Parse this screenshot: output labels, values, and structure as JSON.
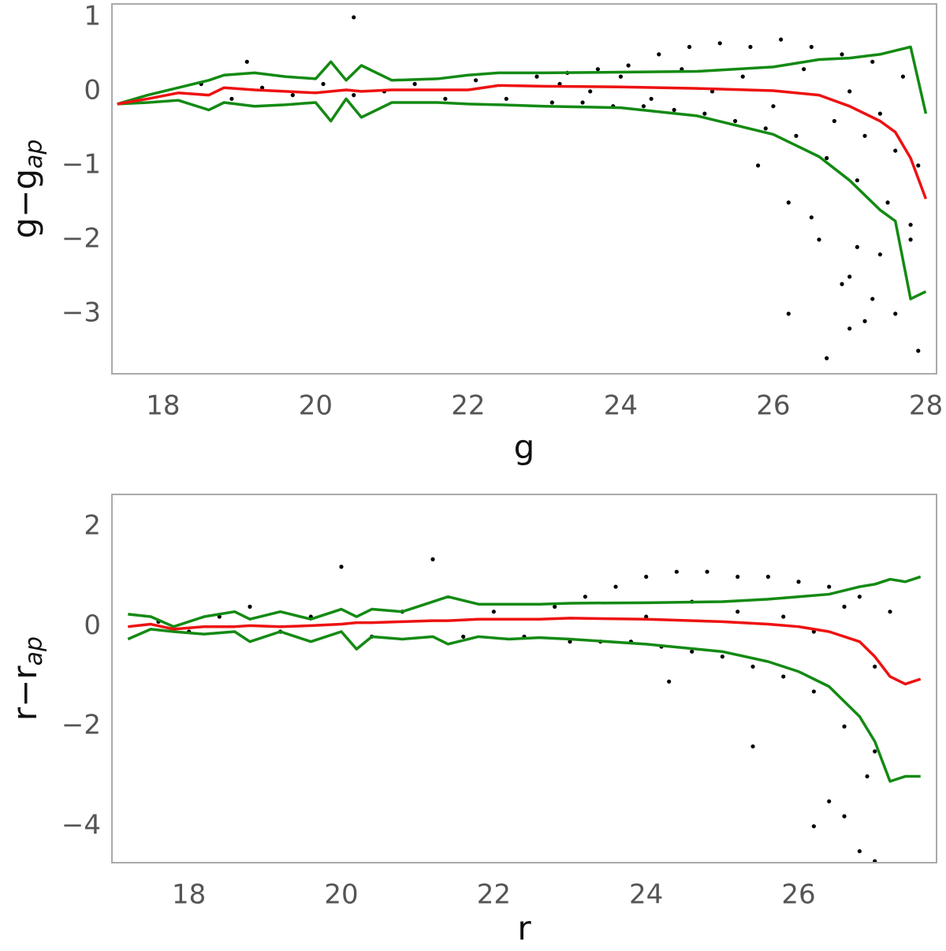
{
  "chart_data": [
    {
      "type": "scatter",
      "xlabel": "g",
      "ylabel": "g−g",
      "ylabel_sub": "ap",
      "xlim": [
        17.33,
        28.14
      ],
      "ylim": [
        -3.81,
        1.18
      ],
      "xticks": [
        18,
        20,
        22,
        24,
        26,
        28
      ],
      "yticks": [
        1,
        0,
        {
          "value": -1,
          "label": "−1"
        },
        {
          "value": -2,
          "label": "−2"
        },
        {
          "value": -3,
          "label": "−3"
        }
      ],
      "grid": false,
      "scatter": {
        "color": "#000000",
        "x": [
          18.5,
          18.9,
          19.3,
          19.7,
          20.1,
          20.5,
          20.9,
          21.3,
          21.7,
          22.1,
          22.5,
          22.9,
          23.1,
          23.3,
          23.5,
          23.7,
          23.9,
          24.1,
          24.3,
          24.5,
          24.7,
          24.9,
          25.1,
          25.3,
          25.5,
          25.7,
          25.9,
          26.1,
          26.3,
          26.5,
          26.7,
          26.9,
          27.1,
          27.3,
          27.5,
          27.7,
          27.9,
          23.2,
          23.6,
          24.0,
          24.4,
          24.8,
          25.2,
          25.6,
          26.0,
          26.4,
          26.8,
          27.0,
          27.2,
          27.4,
          27.6,
          27.8,
          25.8,
          26.2,
          26.6,
          27.0,
          27.4,
          27.8,
          20.5,
          19.1,
          26.2,
          26.7,
          27.0,
          27.2,
          27.6,
          27.9,
          26.9,
          27.3,
          27.1,
          26.5
        ],
        "y": [
          0.1,
          -0.1,
          0.05,
          -0.05,
          0.1,
          -0.05,
          0.0,
          0.1,
          -0.1,
          0.15,
          -0.1,
          0.2,
          -0.15,
          0.25,
          -0.15,
          0.3,
          -0.2,
          0.35,
          -0.2,
          0.5,
          -0.25,
          0.6,
          -0.3,
          0.65,
          -0.4,
          0.6,
          -0.5,
          0.7,
          -0.6,
          0.6,
          -0.9,
          0.5,
          -1.2,
          0.4,
          -1.5,
          0.2,
          -1.0,
          0.1,
          0.0,
          0.2,
          -0.1,
          0.3,
          0.0,
          0.2,
          -0.2,
          0.3,
          -0.4,
          0.0,
          -0.6,
          -0.3,
          -0.8,
          -2.0,
          -1.0,
          -1.5,
          -2.0,
          -2.5,
          -2.2,
          -1.8,
          1.0,
          0.4,
          -3.0,
          -3.6,
          -3.2,
          -3.1,
          -3.0,
          -3.5,
          -2.6,
          -2.8,
          -2.1,
          -1.7
        ]
      },
      "lines": {
        "x": [
          17.4,
          17.8,
          18.2,
          18.6,
          18.8,
          19.2,
          19.6,
          20.0,
          20.2,
          20.4,
          20.6,
          21.0,
          21.6,
          22.0,
          22.4,
          23.0,
          24.0,
          25.0,
          26.0,
          26.6,
          27.0,
          27.4,
          27.6,
          27.8,
          28.0
        ],
        "series": [
          {
            "color": "#138a13",
            "values": [
              -0.17,
              -0.05,
              0.05,
              0.15,
              0.22,
              0.25,
              0.2,
              0.17,
              0.4,
              0.15,
              0.35,
              0.15,
              0.17,
              0.22,
              0.25,
              0.25,
              0.26,
              0.27,
              0.33,
              0.43,
              0.45,
              0.5,
              0.55,
              0.6,
              -0.3
            ]
          },
          {
            "color": "#138a13",
            "values": [
              -0.17,
              -0.15,
              -0.12,
              -0.25,
              -0.15,
              -0.2,
              -0.18,
              -0.15,
              -0.4,
              -0.1,
              -0.35,
              -0.15,
              -0.15,
              -0.17,
              -0.18,
              -0.2,
              -0.22,
              -0.33,
              -0.58,
              -0.88,
              -1.2,
              -1.6,
              -1.75,
              -2.8,
              -2.7
            ]
          },
          {
            "color": "#ee1111",
            "values": [
              -0.17,
              -0.1,
              -0.02,
              -0.05,
              0.05,
              0.02,
              0.0,
              -0.02,
              0.0,
              0.02,
              0.0,
              0.02,
              0.02,
              0.02,
              0.08,
              0.07,
              0.06,
              0.04,
              0.01,
              -0.05,
              -0.2,
              -0.4,
              -0.55,
              -0.9,
              -1.45
            ]
          }
        ]
      }
    },
    {
      "type": "scatter",
      "xlabel": "r",
      "ylabel": "r−r",
      "ylabel_sub": "ap",
      "xlim": [
        16.99,
        27.81
      ],
      "ylim": [
        -4.73,
        2.65
      ],
      "xticks": [
        18,
        20,
        22,
        24,
        26
      ],
      "yticks": [
        2,
        0,
        {
          "value": -2,
          "label": "−2"
        },
        {
          "value": -4,
          "label": "−4"
        }
      ],
      "grid": false,
      "scatter": {
        "color": "#000000",
        "x": [
          17.6,
          18.0,
          18.4,
          18.8,
          19.2,
          19.6,
          20.0,
          20.4,
          20.8,
          21.2,
          21.6,
          22.0,
          22.4,
          22.8,
          23.0,
          23.2,
          23.4,
          23.6,
          23.8,
          24.0,
          24.2,
          24.4,
          24.6,
          24.8,
          25.0,
          25.2,
          25.4,
          25.6,
          25.8,
          26.0,
          26.2,
          26.4,
          26.6,
          26.8,
          27.0,
          27.2,
          24.0,
          24.6,
          25.2,
          25.8,
          26.2,
          26.6,
          27.0,
          26.4,
          26.8,
          27.0,
          26.9,
          26.6,
          26.2,
          25.4,
          24.3
        ],
        "y": [
          0.1,
          -0.1,
          0.2,
          0.4,
          -0.1,
          0.2,
          1.2,
          -0.2,
          0.3,
          1.35,
          -0.2,
          0.3,
          -0.2,
          0.4,
          -0.3,
          0.6,
          -0.3,
          0.8,
          -0.3,
          1.0,
          -0.4,
          1.1,
          -0.5,
          1.1,
          -0.6,
          1.0,
          -0.8,
          1.0,
          -1.0,
          0.9,
          -1.3,
          0.8,
          -2.0,
          0.6,
          -2.5,
          0.3,
          0.2,
          0.5,
          0.3,
          0.2,
          -0.1,
          0.4,
          -0.8,
          -3.5,
          -4.5,
          -4.7,
          -3.0,
          -3.8,
          -4.0,
          -2.4,
          -1.1
        ]
      },
      "lines": {
        "x": [
          17.2,
          17.5,
          17.8,
          18.2,
          18.6,
          18.8,
          19.2,
          19.6,
          20.0,
          20.2,
          20.4,
          20.8,
          21.2,
          21.4,
          21.8,
          22.2,
          22.6,
          23.0,
          24.0,
          25.0,
          25.6,
          26.0,
          26.4,
          26.8,
          27.0,
          27.2,
          27.4,
          27.6
        ],
        "series": [
          {
            "color": "#138a13",
            "values": [
              0.25,
              0.2,
              0.0,
              0.2,
              0.3,
              0.15,
              0.3,
              0.15,
              0.35,
              0.2,
              0.35,
              0.3,
              0.5,
              0.6,
              0.45,
              0.45,
              0.45,
              0.47,
              0.48,
              0.5,
              0.55,
              0.6,
              0.65,
              0.8,
              0.85,
              0.95,
              0.9,
              1.0
            ]
          },
          {
            "color": "#138a13",
            "values": [
              -0.25,
              -0.05,
              -0.1,
              -0.15,
              -0.1,
              -0.3,
              -0.1,
              -0.3,
              -0.1,
              -0.45,
              -0.2,
              -0.25,
              -0.2,
              -0.35,
              -0.2,
              -0.25,
              -0.22,
              -0.25,
              -0.35,
              -0.5,
              -0.7,
              -0.9,
              -1.2,
              -1.8,
              -2.3,
              -3.1,
              -3.0,
              -3.0
            ]
          },
          {
            "color": "#ee1111",
            "values": [
              0.0,
              0.05,
              -0.05,
              0.0,
              0.0,
              0.02,
              0.0,
              0.02,
              0.05,
              0.08,
              0.08,
              0.1,
              0.12,
              0.12,
              0.15,
              0.15,
              0.15,
              0.17,
              0.15,
              0.1,
              0.05,
              0.0,
              -0.1,
              -0.3,
              -0.6,
              -1.0,
              -1.15,
              -1.05
            ]
          }
        ]
      }
    }
  ]
}
